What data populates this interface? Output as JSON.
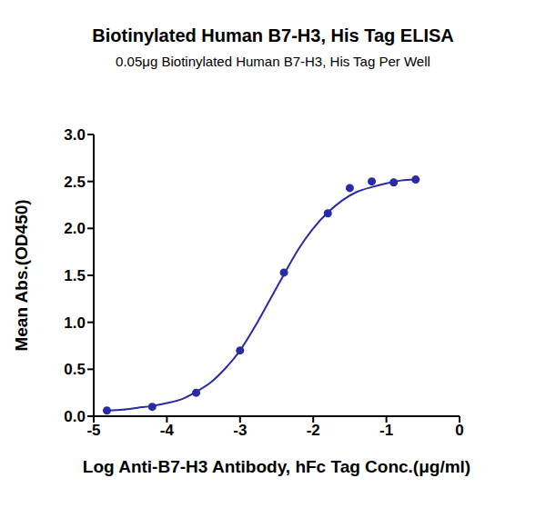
{
  "chart_data": {
    "type": "scatter",
    "title": "Biotinylated Human B7-H3, His Tag ELISA",
    "subtitle": "0.05μg Biotinylated Human B7-H3, His Tag Per Well",
    "x_label": "Log Anti-B7-H3 Antibody, hFc Tag Conc.(μg/ml)",
    "y_label": "Mean Abs.(OD450)",
    "xlim": [
      -5,
      0
    ],
    "xticks": [
      -5,
      -4,
      -3,
      -2,
      -1,
      0
    ],
    "ylim": [
      0,
      3
    ],
    "yticks": [
      {
        "value": 0,
        "label": "0.0"
      },
      0.5,
      {
        "value": 1,
        "label": "1.0"
      },
      1.5,
      {
        "value": 2,
        "label": "2.0"
      },
      2.5,
      {
        "value": 3,
        "label": "3.0"
      }
    ],
    "grid": false,
    "series": [
      {
        "type": "scatter",
        "color": "#2a2aa5",
        "marker": "circle",
        "x": [
          -4.82,
          -4.2,
          -3.6,
          -3.0,
          -2.4,
          -1.8,
          -1.5,
          -1.2,
          -0.9,
          -0.6
        ],
        "values": [
          0.06,
          0.1,
          0.25,
          0.7,
          1.53,
          2.16,
          2.43,
          2.5,
          2.49,
          2.52
        ]
      },
      {
        "type": "line",
        "color": "#2a2aa5",
        "line_style": "solid",
        "x": [
          -4.8,
          -4.6,
          -4.4,
          -4.2,
          -4.0,
          -3.8,
          -3.6,
          -3.4,
          -3.2,
          -3.0,
          -2.8,
          -2.6,
          -2.4,
          -2.2,
          -2.0,
          -1.8,
          -1.6,
          -1.4,
          -1.2,
          -1.0,
          -0.8,
          -0.6
        ],
        "values": [
          0.06,
          0.07,
          0.09,
          0.11,
          0.14,
          0.18,
          0.26,
          0.36,
          0.51,
          0.7,
          0.95,
          1.23,
          1.51,
          1.78,
          2.0,
          2.17,
          2.3,
          2.39,
          2.44,
          2.48,
          2.51,
          2.52
        ]
      }
    ]
  }
}
